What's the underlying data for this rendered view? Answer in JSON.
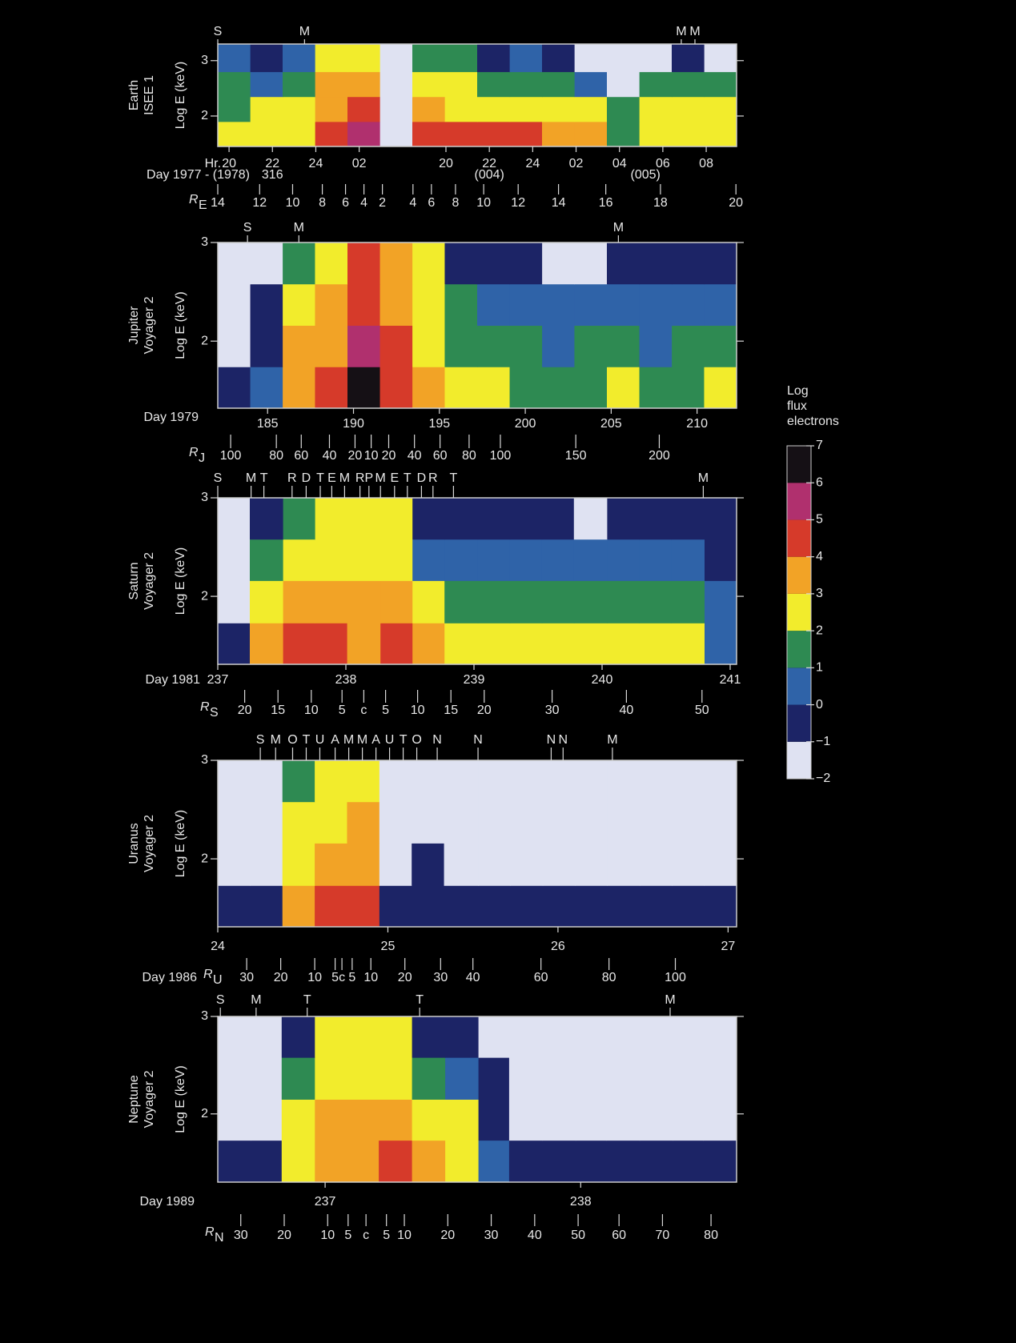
{
  "chart_data": [
    {
      "type": "heatmap",
      "name": [
        "Earth",
        "ISEE 1"
      ],
      "ylabel": "Log E (keV)",
      "ylim": [
        1.45,
        3.3
      ],
      "yticks": [
        2,
        3
      ],
      "xlim": [
        -0.52,
        23.4
      ],
      "x_unit": "Hr.",
      "xticks": [
        {
          "value": 0,
          "label": "20"
        },
        {
          "value": 2,
          "label": "22"
        },
        {
          "value": 4,
          "label": "24"
        },
        {
          "value": 6,
          "label": "02"
        },
        {
          "value": 10,
          "label": "20"
        },
        {
          "value": 12,
          "label": "22"
        },
        {
          "value": 14,
          "label": "24"
        },
        {
          "value": 16,
          "label": "02"
        },
        {
          "value": 18,
          "label": "04"
        },
        {
          "value": 20,
          "label": "06"
        },
        {
          "value": 22,
          "label": "08"
        }
      ],
      "day_title": "Day 1977 - (1978)",
      "day_labels": [
        {
          "x": 2,
          "label": "316"
        },
        {
          "x": 12,
          "label": "(004)"
        },
        {
          "x": 19.2,
          "label": "(005)"
        }
      ],
      "r_label": "R",
      "r_sub": "E",
      "r_ticks": [
        {
          "x": -0.52,
          "r": 14
        },
        {
          "x": 1.41,
          "r": 12
        },
        {
          "x": 2.93,
          "r": 10
        },
        {
          "x": 4.3,
          "r": 8
        },
        {
          "x": 5.37,
          "r": 6
        },
        {
          "x": 6.22,
          "r": 4
        },
        {
          "x": 7.07,
          "r": 2
        },
        {
          "x": 8.48,
          "r": 4
        },
        {
          "x": 9.33,
          "r": 6
        },
        {
          "x": 10.44,
          "r": 8
        },
        {
          "x": 11.74,
          "r": 10
        },
        {
          "x": 13.33,
          "r": 12
        },
        {
          "x": 15.19,
          "r": 14
        },
        {
          "x": 17.37,
          "r": 16
        },
        {
          "x": 19.89,
          "r": 18
        },
        {
          "x": 23.37,
          "r": 20
        }
      ],
      "markers": [
        {
          "x": -0.52,
          "label": "S"
        },
        {
          "x": 3.48,
          "label": "M"
        },
        {
          "x": 20.85,
          "label": "M"
        },
        {
          "x": 21.48,
          "label": "M"
        }
      ],
      "x_edges": [
        -0.52,
        0.98,
        2.47,
        3.97,
        5.46,
        6.96,
        8.45,
        9.95,
        11.44,
        12.94,
        14.43,
        15.93,
        17.42,
        18.92,
        20.41,
        21.91,
        23.4
      ],
      "y_edges": [
        1.45,
        1.9,
        2.35,
        2.8,
        3.3
      ],
      "z": [
        [
          2.5,
          2.5,
          2.5,
          4.5,
          5.2,
          -2,
          4.2,
          4.3,
          4.2,
          4.2,
          3.8,
          3.2,
          1.5,
          2.6,
          2.5,
          2.5
        ],
        [
          1.5,
          2.2,
          2.4,
          3.8,
          4.0,
          -2,
          3.5,
          2.8,
          2.6,
          2.6,
          2.6,
          2.5,
          1.2,
          2.2,
          2.2,
          2.0
        ],
        [
          1.2,
          0.6,
          1.5,
          3.2,
          3.3,
          -2,
          2.5,
          2.2,
          1.6,
          1.6,
          1.2,
          0.8,
          -1.5,
          1.2,
          1.0,
          1.0
        ],
        [
          0.5,
          -0.5,
          0.8,
          2.4,
          2.5,
          -2,
          1.5,
          1.0,
          -0.5,
          0.2,
          -1,
          -1.6,
          -1.8,
          -1.8,
          -0.5,
          -1.8
        ]
      ]
    },
    {
      "type": "heatmap",
      "name": [
        "Jupiter",
        "Voyager 2"
      ],
      "ylabel": "Log E (keV)",
      "ylim": [
        1.32,
        3.0
      ],
      "yticks": [
        2,
        3
      ],
      "xlim": [
        182.1,
        212.3
      ],
      "xticks": [
        185,
        190,
        195,
        200,
        205,
        210
      ],
      "day_title": "Day 1979",
      "r_label": "R",
      "r_sub": "J",
      "r_ticks": [
        {
          "x": 182.85,
          "r": 100
        },
        {
          "x": 185.51,
          "r": 80
        },
        {
          "x": 186.96,
          "r": 60
        },
        {
          "x": 188.6,
          "r": 40
        },
        {
          "x": 190.09,
          "r": 20
        },
        {
          "x": 191.03,
          "r": 10
        },
        {
          "x": 192.05,
          "r": 20
        },
        {
          "x": 193.55,
          "r": 40
        },
        {
          "x": 195.04,
          "r": 60
        },
        {
          "x": 196.73,
          "r": 80
        },
        {
          "x": 198.55,
          "r": 100
        },
        {
          "x": 202.94,
          "r": 150
        },
        {
          "x": 207.8,
          "r": 200
        }
      ],
      "markers": [
        {
          "x": 183.83,
          "label": "S"
        },
        {
          "x": 186.82,
          "label": "M"
        },
        {
          "x": 205.42,
          "label": "M"
        }
      ],
      "x_edges": [
        182.1,
        183.99,
        185.88,
        187.76,
        189.65,
        191.54,
        193.43,
        195.31,
        197.2,
        199.09,
        200.98,
        202.86,
        204.75,
        206.64,
        208.53,
        210.41,
        212.3
      ],
      "y_edges": [
        1.32,
        1.74,
        2.16,
        2.58,
        3.0
      ],
      "z": [
        [
          -1,
          0,
          3.5,
          4.2,
          6.2,
          4.5,
          3.2,
          2.3,
          2.0,
          1.8,
          1.5,
          1.8,
          2.0,
          1.6,
          1.8,
          2.2
        ],
        [
          -1.5,
          -0.5,
          3.3,
          3.8,
          5.5,
          4.2,
          2.8,
          1.5,
          1.2,
          1.0,
          0.8,
          1.0,
          1.0,
          0.8,
          1.2,
          1.0
        ],
        [
          -2,
          -1,
          2.6,
          3.2,
          4.8,
          3.5,
          2.5,
          1.0,
          0.5,
          0.3,
          0,
          0,
          0.2,
          0.3,
          0.5,
          0.3
        ],
        [
          -2,
          -1.5,
          1.5,
          2.7,
          4.5,
          3.2,
          2.0,
          -0.5,
          -1,
          -1,
          -2,
          -1.5,
          -0.8,
          -1,
          -1,
          -1
        ]
      ]
    },
    {
      "type": "heatmap",
      "name": [
        "Saturn",
        "Voyager 2"
      ],
      "ylabel": "Log E (keV)",
      "ylim": [
        1.31,
        3.0
      ],
      "yticks": [
        2,
        3
      ],
      "xlim": [
        237,
        241.05
      ],
      "xticks": [
        237,
        238,
        239,
        240,
        241
      ],
      "day_title": "Day 1981",
      "r_label": "R",
      "r_sub": "S",
      "r_ticks": [
        {
          "x": 237.21,
          "r": 20
        },
        {
          "x": 237.47,
          "r": 15
        },
        {
          "x": 237.73,
          "r": 10
        },
        {
          "x": 237.97,
          "r": 5
        },
        {
          "x": 238.14,
          "label": "c"
        },
        {
          "x": 238.31,
          "r": 5
        },
        {
          "x": 238.56,
          "r": 10
        },
        {
          "x": 238.82,
          "r": 15
        },
        {
          "x": 239.08,
          "r": 20
        },
        {
          "x": 239.61,
          "r": 30
        },
        {
          "x": 240.19,
          "r": 40
        },
        {
          "x": 240.78,
          "r": 50
        }
      ],
      "markers": [
        {
          "x": 237.0,
          "label": "S"
        },
        {
          "x": 237.26,
          "label": "M"
        },
        {
          "x": 237.36,
          "label": "T"
        },
        {
          "x": 237.58,
          "label": "R"
        },
        {
          "x": 237.69,
          "label": "D"
        },
        {
          "x": 237.8,
          "label": "T"
        },
        {
          "x": 237.89,
          "label": "E"
        },
        {
          "x": 237.99,
          "label": "M"
        },
        {
          "x": 238.11,
          "label": "R"
        },
        {
          "x": 238.18,
          "label": "P"
        },
        {
          "x": 238.27,
          "label": "M"
        },
        {
          "x": 238.38,
          "label": "E"
        },
        {
          "x": 238.48,
          "label": "T"
        },
        {
          "x": 238.59,
          "label": "D"
        },
        {
          "x": 238.68,
          "label": "R"
        },
        {
          "x": 238.84,
          "label": "T"
        },
        {
          "x": 240.79,
          "label": "M"
        }
      ],
      "x_edges": [
        237,
        237.25,
        237.51,
        237.76,
        238.01,
        238.27,
        238.52,
        238.77,
        239.03,
        239.28,
        239.53,
        239.78,
        240.04,
        240.29,
        240.54,
        240.8,
        241.05
      ],
      "y_edges": [
        1.31,
        1.73,
        2.16,
        2.58,
        3.0
      ],
      "z": [
        [
          -1,
          3.6,
          4.2,
          4.3,
          3.5,
          4.0,
          3.0,
          2.5,
          2.4,
          2.4,
          2.3,
          2.2,
          2.2,
          2.2,
          2.0,
          0.5
        ],
        [
          -2,
          2.5,
          3,
          3.2,
          3.0,
          3.0,
          2.0,
          1.6,
          1.6,
          1.5,
          1.4,
          1.2,
          1.2,
          1.2,
          1.0,
          0
        ],
        [
          -2,
          1.2,
          2.5,
          2.8,
          2.8,
          2.6,
          0.8,
          0.6,
          0.5,
          0.4,
          0.4,
          0.5,
          0.3,
          0.2,
          0.2,
          -0.5
        ],
        [
          -2,
          -0.5,
          1.0,
          2.5,
          2.6,
          2.2,
          -0.5,
          -0.5,
          -0.8,
          -1,
          -0.8,
          -1.2,
          -0.8,
          -1,
          -1,
          -1
        ]
      ]
    },
    {
      "type": "heatmap",
      "name": [
        "Uranus",
        "Voyager 2"
      ],
      "ylabel": "Log E (keV)",
      "ylim": [
        1.31,
        3.0
      ],
      "yticks": [
        2,
        3
      ],
      "xlim": [
        24,
        27.05
      ],
      "xticks": [
        24,
        25,
        26,
        27
      ],
      "day_title": "Day 1986",
      "r_label": "R",
      "r_sub": "U",
      "r_ticks": [
        {
          "x": 24.17,
          "r": 30
        },
        {
          "x": 24.37,
          "r": 20
        },
        {
          "x": 24.57,
          "r": 10
        },
        {
          "x": 24.69,
          "r": 5
        },
        {
          "x": 24.73,
          "label": "c"
        },
        {
          "x": 24.79,
          "r": 5
        },
        {
          "x": 24.9,
          "r": 10
        },
        {
          "x": 25.1,
          "r": 20
        },
        {
          "x": 25.31,
          "r": 30
        },
        {
          "x": 25.5,
          "r": 40
        },
        {
          "x": 25.9,
          "r": 60
        },
        {
          "x": 26.3,
          "r": 80
        },
        {
          "x": 26.69,
          "r": 100
        }
      ],
      "markers": [
        {
          "x": 24.25,
          "label": "S"
        },
        {
          "x": 24.34,
          "label": "M"
        },
        {
          "x": 24.44,
          "label": "O"
        },
        {
          "x": 24.52,
          "label": "T"
        },
        {
          "x": 24.6,
          "label": "U"
        },
        {
          "x": 24.69,
          "label": "A"
        },
        {
          "x": 24.77,
          "label": "M"
        },
        {
          "x": 24.85,
          "label": "M"
        },
        {
          "x": 24.93,
          "label": "A"
        },
        {
          "x": 25.01,
          "label": "U"
        },
        {
          "x": 25.09,
          "label": "T"
        },
        {
          "x": 25.17,
          "label": "O"
        },
        {
          "x": 25.29,
          "label": "N"
        },
        {
          "x": 25.53,
          "label": "N"
        },
        {
          "x": 25.96,
          "label": "N"
        },
        {
          "x": 26.03,
          "label": "N"
        },
        {
          "x": 26.32,
          "label": "M"
        }
      ],
      "x_edges": [
        24,
        24.19,
        24.38,
        24.57,
        24.76,
        24.95,
        25.14,
        25.33,
        25.53,
        25.72,
        25.91,
        26.1,
        26.29,
        26.48,
        26.67,
        26.86,
        27.05
      ],
      "y_edges": [
        1.31,
        1.73,
        2.16,
        2.58,
        3.0
      ],
      "z": [
        [
          -1,
          -0.8,
          3.5,
          4.0,
          4.2,
          -1,
          -0.5,
          -1,
          -1,
          -1,
          -1,
          -1,
          -1,
          -1,
          -1,
          -1
        ],
        [
          -1.5,
          -1.2,
          2.8,
          3.2,
          3.8,
          -1.2,
          -1,
          -1.2,
          -1.2,
          -1.3,
          -1.2,
          -1.3,
          -1.2,
          -1.3,
          -1.2,
          -1.3
        ],
        [
          -1.8,
          -1.5,
          2.2,
          2.6,
          3.2,
          -1.6,
          -1.5,
          -1.6,
          -1.6,
          -1.7,
          -1.6,
          -1.7,
          -1.6,
          -1.7,
          -1.7,
          -1.7
        ],
        [
          -2,
          -1.8,
          1.5,
          2.4,
          2.6,
          -2,
          -1.9,
          -2,
          -2,
          -1.9,
          -2,
          -1.9,
          -2,
          -1.9,
          -2,
          -2
        ]
      ]
    },
    {
      "type": "heatmap",
      "name": [
        "Neptune",
        "Voyager 2"
      ],
      "ylabel": "Log E (keV)",
      "ylim": [
        1.3,
        3.0
      ],
      "yticks": [
        2,
        3
      ],
      "xlim": [
        236.58,
        238.61
      ],
      "xticks": [
        237,
        238
      ],
      "day_title": "Day 1989",
      "r_label": "R",
      "r_sub": "N",
      "r_ticks": [
        {
          "x": 236.67,
          "r": 30
        },
        {
          "x": 236.84,
          "r": 20
        },
        {
          "x": 237.01,
          "r": 10
        },
        {
          "x": 237.09,
          "r": 5
        },
        {
          "x": 237.16,
          "label": "c"
        },
        {
          "x": 237.24,
          "r": 5
        },
        {
          "x": 237.31,
          "r": 10
        },
        {
          "x": 237.48,
          "r": 20
        },
        {
          "x": 237.65,
          "r": 30
        },
        {
          "x": 237.82,
          "r": 40
        },
        {
          "x": 237.99,
          "r": 50
        },
        {
          "x": 238.15,
          "r": 60
        },
        {
          "x": 238.32,
          "r": 70
        },
        {
          "x": 238.51,
          "r": 80
        }
      ],
      "markers": [
        {
          "x": 236.59,
          "label": "S"
        },
        {
          "x": 236.73,
          "label": "M"
        },
        {
          "x": 236.93,
          "label": "T"
        },
        {
          "x": 237.37,
          "label": "T"
        },
        {
          "x": 238.35,
          "label": "M"
        }
      ],
      "x_edges": [
        236.58,
        236.71,
        236.83,
        236.96,
        237.09,
        237.21,
        237.34,
        237.47,
        237.6,
        237.72,
        237.85,
        237.98,
        238.1,
        238.23,
        238.36,
        238.48,
        238.61
      ],
      "y_edges": [
        1.3,
        1.73,
        2.15,
        2.58,
        3.0
      ],
      "z": [
        [
          -1,
          -1,
          2.5,
          3.8,
          3.5,
          4.0,
          3.2,
          2.5,
          0.5,
          -1,
          -1,
          -1,
          -1,
          -1,
          -1,
          -1
        ],
        [
          -1.2,
          -1.2,
          2.0,
          3.0,
          3.0,
          3.2,
          2.6,
          2.0,
          -0.5,
          -1.1,
          -1.1,
          -1.1,
          -1.1,
          -1.1,
          -1.1,
          -1.1
        ],
        [
          -1.5,
          -1.5,
          1.0,
          2.5,
          2.6,
          2.6,
          1.5,
          0.5,
          -1,
          -1.5,
          -1.4,
          -1.5,
          -1.4,
          -1.5,
          -1.4,
          -1.5
        ],
        [
          -1.8,
          -1.8,
          -1,
          2.3,
          2.4,
          2.3,
          -0.5,
          -1,
          -1.6,
          -1.8,
          -1.7,
          -1.8,
          -1.7,
          -1.8,
          -1.7,
          -1.8
        ]
      ]
    },
    {
      "type": "colorbar",
      "title": [
        "Log",
        "flux",
        "electrons"
      ],
      "ylim": [
        -2,
        7
      ],
      "yticks": [
        {
          "value": -2,
          "label": "−2"
        },
        {
          "value": -1,
          "label": "−1"
        },
        0,
        1,
        2,
        3,
        4,
        5,
        6,
        7
      ],
      "colors": [
        "#dfe2f2",
        "#1c2466",
        "#2f63a8",
        "#2e8a52",
        "#f2ec2c",
        "#f2a326",
        "#d63a2a",
        "#b0306e",
        "#151015"
      ]
    }
  ]
}
